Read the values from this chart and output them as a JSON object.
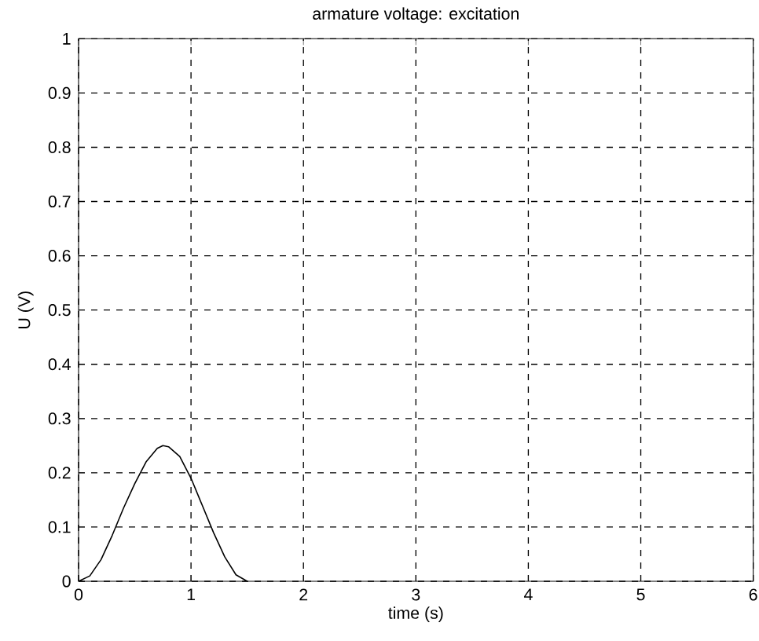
{
  "chart_data": {
    "type": "line",
    "title": "armature voltage: excitation",
    "xlabel": "time (s)",
    "ylabel": "U (V)",
    "xlim": [
      0,
      6
    ],
    "ylim": [
      0,
      1
    ],
    "xticks": [
      0,
      1,
      2,
      3,
      4,
      5,
      6
    ],
    "yticks": [
      0,
      0.1,
      0.2,
      0.3,
      0.4,
      0.5,
      0.6,
      0.7,
      0.8,
      0.9,
      1
    ],
    "grid": true,
    "line_style": "solid",
    "marker": "none",
    "series": [
      {
        "color": "#000000",
        "x": [
          0,
          0.1,
          0.2,
          0.3,
          0.4,
          0.5,
          0.6,
          0.7,
          0.75,
          0.8,
          0.9,
          1.0,
          1.1,
          1.2,
          1.3,
          1.4,
          1.5
        ],
        "values": [
          0,
          0.01,
          0.04,
          0.085,
          0.135,
          0.18,
          0.22,
          0.245,
          0.25,
          0.248,
          0.23,
          0.19,
          0.14,
          0.09,
          0.045,
          0.012,
          0
        ]
      }
    ]
  }
}
